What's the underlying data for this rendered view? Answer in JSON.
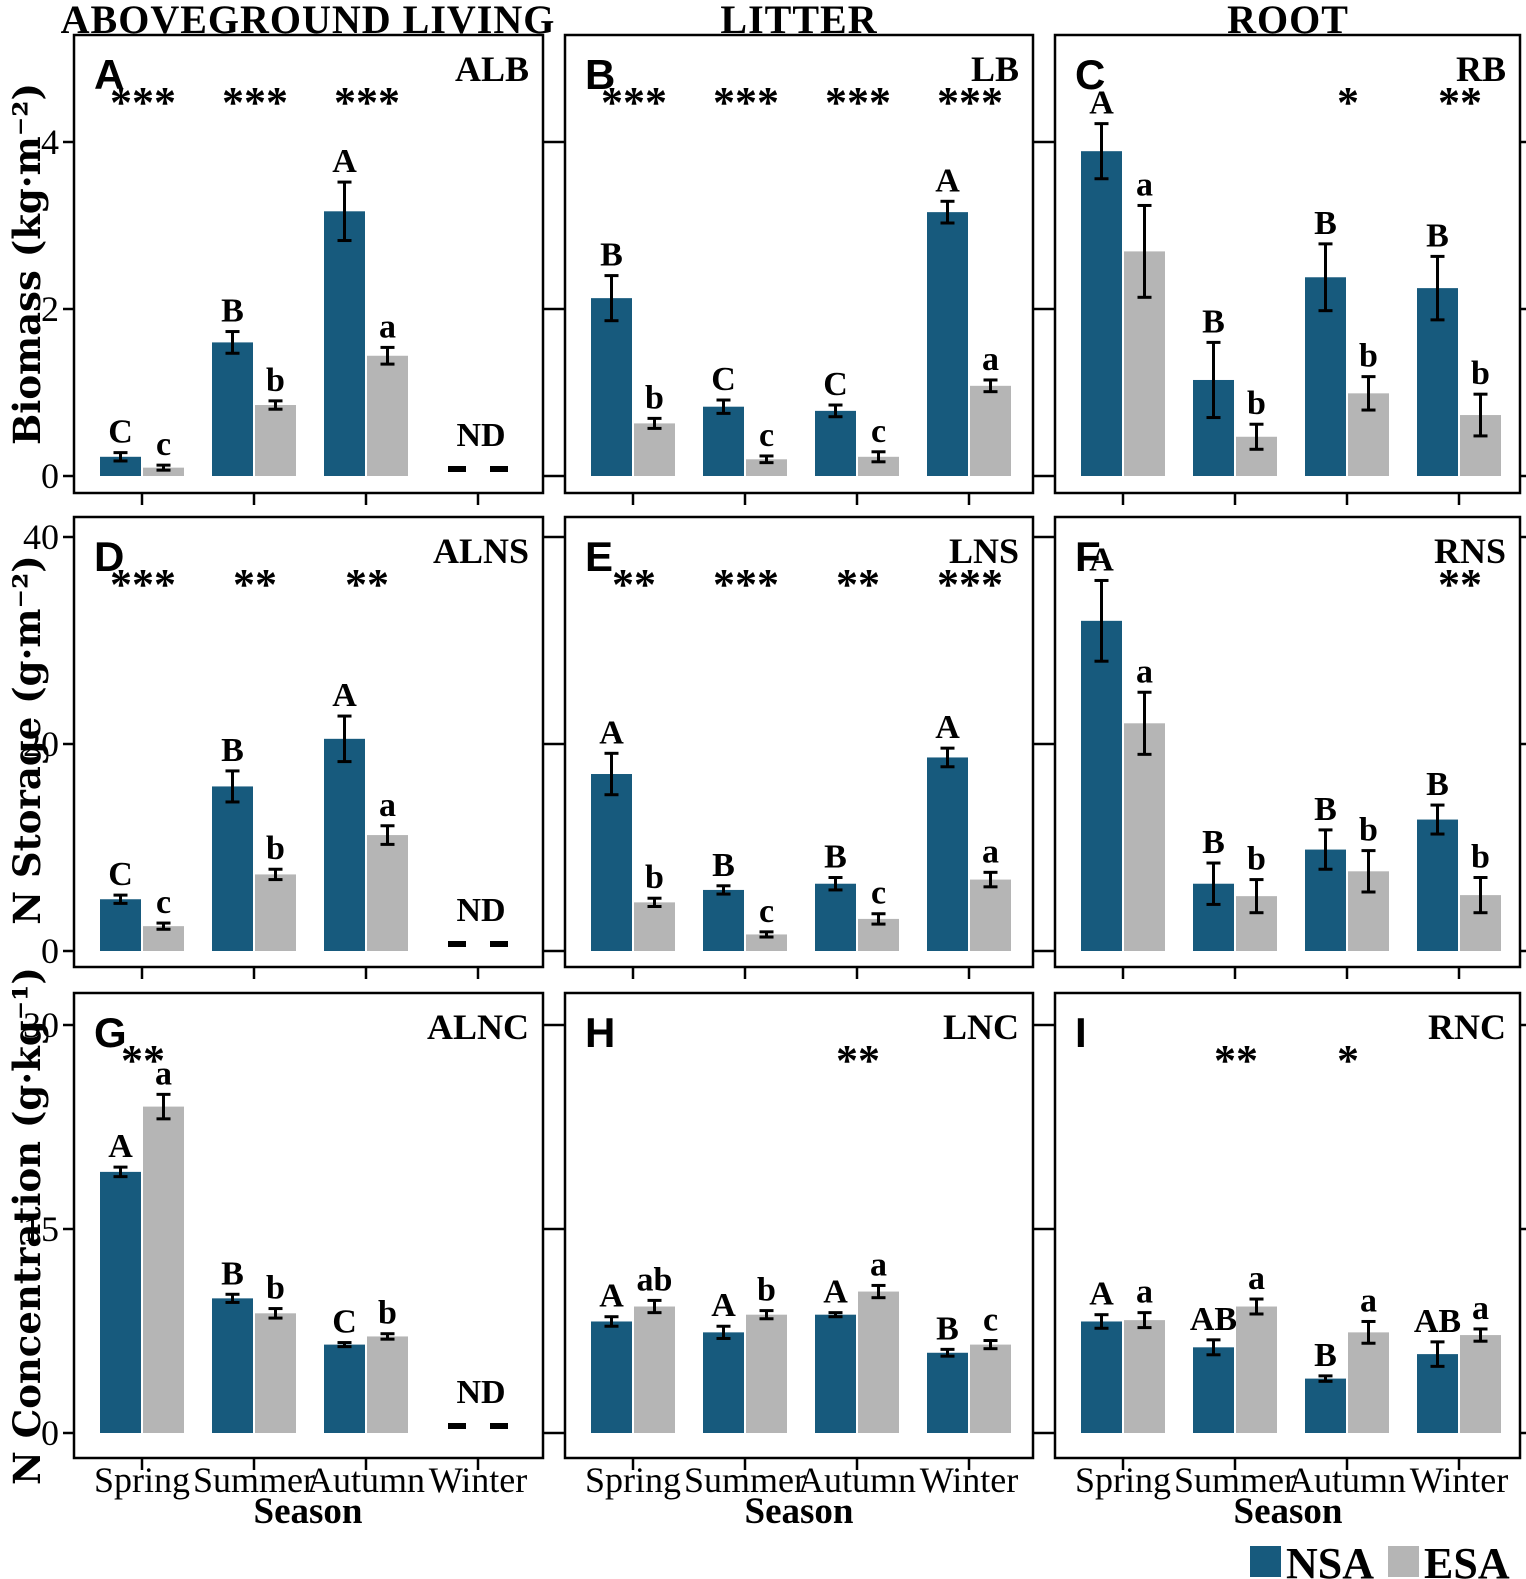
{
  "figure": {
    "columns": [
      "ABOVEGROUND LIVING",
      "LITTER",
      "ROOT"
    ],
    "row_ylabels": [
      "Biomass (kg·m⁻²)",
      "N Storage (g·m⁻²)",
      "N Concentration (g·kg⁻¹)"
    ],
    "xlabel": "Season",
    "x_categories": [
      "Spring",
      "Summer",
      "Autumn",
      "Winter"
    ],
    "nd_label": "ND",
    "colors": {
      "nsa": "#175a7d",
      "esa": "#b5b5b5",
      "axis": "#000000"
    },
    "legend": [
      {
        "label": "NSA",
        "color": "#175a7d"
      },
      {
        "label": "ESA",
        "color": "#b5b5b5"
      }
    ]
  },
  "chart_data": [
    {
      "type": "bar",
      "panel": "A",
      "tag": "ALB",
      "row": 0,
      "col": 0,
      "ylim": [
        0,
        5.3
      ],
      "yticks": [
        0,
        2,
        4
      ],
      "categories": [
        "Spring",
        "Summer",
        "Autumn",
        "Winter"
      ],
      "stars": [
        "***",
        "***",
        "***",
        ""
      ],
      "nd": [
        false,
        false,
        false,
        true
      ],
      "series": [
        {
          "name": "NSA",
          "values": [
            0.23,
            1.6,
            3.17,
            null
          ],
          "errors": [
            0.05,
            0.13,
            0.35,
            null
          ],
          "letters": [
            "C",
            "B",
            "A",
            ""
          ]
        },
        {
          "name": "ESA",
          "values": [
            0.1,
            0.85,
            1.44,
            null
          ],
          "errors": [
            0.03,
            0.05,
            0.1,
            null
          ],
          "letters": [
            "c",
            "b",
            "a",
            ""
          ]
        }
      ]
    },
    {
      "type": "bar",
      "panel": "B",
      "tag": "LB",
      "row": 0,
      "col": 1,
      "ylim": [
        0,
        5.3
      ],
      "yticks": [
        0,
        2,
        4
      ],
      "categories": [
        "Spring",
        "Summer",
        "Autumn",
        "Winter"
      ],
      "stars": [
        "***",
        "***",
        "***",
        "***"
      ],
      "nd": [
        false,
        false,
        false,
        false
      ],
      "series": [
        {
          "name": "NSA",
          "values": [
            2.13,
            0.83,
            0.78,
            3.16
          ],
          "errors": [
            0.27,
            0.08,
            0.07,
            0.13
          ],
          "letters": [
            "B",
            "C",
            "C",
            "A"
          ]
        },
        {
          "name": "ESA",
          "values": [
            0.63,
            0.2,
            0.23,
            1.08
          ],
          "errors": [
            0.06,
            0.04,
            0.06,
            0.07
          ],
          "letters": [
            "b",
            "c",
            "c",
            "a"
          ]
        }
      ]
    },
    {
      "type": "bar",
      "panel": "C",
      "tag": "RB",
      "row": 0,
      "col": 2,
      "ylim": [
        0,
        5.3
      ],
      "yticks": [
        0,
        2,
        4
      ],
      "categories": [
        "Spring",
        "Summer",
        "Autumn",
        "Winter"
      ],
      "stars": [
        "",
        "",
        "*",
        "**"
      ],
      "nd": [
        false,
        false,
        false,
        false
      ],
      "series": [
        {
          "name": "NSA",
          "values": [
            3.89,
            1.15,
            2.38,
            2.25
          ],
          "errors": [
            0.33,
            0.45,
            0.4,
            0.38
          ],
          "letters": [
            "A",
            "B",
            "B",
            "B"
          ]
        },
        {
          "name": "ESA",
          "values": [
            2.69,
            0.47,
            0.99,
            0.73
          ],
          "errors": [
            0.55,
            0.15,
            0.2,
            0.25
          ],
          "letters": [
            "a",
            "b",
            "b",
            "b"
          ]
        }
      ]
    },
    {
      "type": "bar",
      "panel": "D",
      "tag": "ALNS",
      "row": 1,
      "col": 0,
      "ylim": [
        0,
        42
      ],
      "yticks": [
        0,
        20,
        40
      ],
      "categories": [
        "Spring",
        "Summer",
        "Autumn",
        "Winter"
      ],
      "stars": [
        "***",
        "**",
        "**",
        ""
      ],
      "nd": [
        false,
        false,
        false,
        true
      ],
      "series": [
        {
          "name": "NSA",
          "values": [
            5.0,
            15.9,
            20.5,
            null
          ],
          "errors": [
            0.4,
            1.5,
            2.2,
            null
          ],
          "letters": [
            "C",
            "B",
            "A",
            ""
          ]
        },
        {
          "name": "ESA",
          "values": [
            2.4,
            7.4,
            11.2,
            null
          ],
          "errors": [
            0.3,
            0.5,
            0.9,
            null
          ],
          "letters": [
            "c",
            "b",
            "a",
            ""
          ]
        }
      ]
    },
    {
      "type": "bar",
      "panel": "E",
      "tag": "LNS",
      "row": 1,
      "col": 1,
      "ylim": [
        0,
        42
      ],
      "yticks": [
        0,
        20,
        40
      ],
      "categories": [
        "Spring",
        "Summer",
        "Autumn",
        "Winter"
      ],
      "stars": [
        "**",
        "***",
        "**",
        "***"
      ],
      "nd": [
        false,
        false,
        false,
        false
      ],
      "series": [
        {
          "name": "NSA",
          "values": [
            17.1,
            5.9,
            6.5,
            18.7
          ],
          "errors": [
            2.0,
            0.4,
            0.6,
            0.9
          ],
          "letters": [
            "A",
            "B",
            "B",
            "A"
          ]
        },
        {
          "name": "ESA",
          "values": [
            4.7,
            1.6,
            3.1,
            6.9
          ],
          "errors": [
            0.4,
            0.25,
            0.5,
            0.7
          ],
          "letters": [
            "b",
            "c",
            "c",
            "a"
          ]
        }
      ]
    },
    {
      "type": "bar",
      "panel": "F",
      "tag": "RNS",
      "row": 1,
      "col": 2,
      "ylim": [
        0,
        42
      ],
      "yticks": [
        0,
        20,
        40
      ],
      "categories": [
        "Spring",
        "Summer",
        "Autumn",
        "Winter"
      ],
      "stars": [
        "",
        "",
        "",
        "**"
      ],
      "nd": [
        false,
        false,
        false,
        false
      ],
      "series": [
        {
          "name": "NSA",
          "values": [
            31.9,
            6.5,
            9.8,
            12.7
          ],
          "errors": [
            3.9,
            2.0,
            1.9,
            1.4
          ],
          "letters": [
            "A",
            "B",
            "B",
            "B"
          ]
        },
        {
          "name": "ESA",
          "values": [
            22.0,
            5.3,
            7.7,
            5.4
          ],
          "errors": [
            3.0,
            1.6,
            2.0,
            1.7
          ],
          "letters": [
            "a",
            "b",
            "b",
            "b"
          ]
        }
      ]
    },
    {
      "type": "bar",
      "panel": "G",
      "tag": "ALNC",
      "row": 2,
      "col": 0,
      "ylim": [
        0,
        32.4
      ],
      "yticks": [
        0,
        15,
        30
      ],
      "categories": [
        "Spring",
        "Summer",
        "Autumn",
        "Winter"
      ],
      "stars": [
        "**",
        "",
        "",
        ""
      ],
      "nd": [
        false,
        false,
        false,
        true
      ],
      "series": [
        {
          "name": "NSA",
          "values": [
            19.2,
            9.9,
            6.5,
            null
          ],
          "errors": [
            0.35,
            0.3,
            0.15,
            null
          ],
          "letters": [
            "A",
            "B",
            "C",
            ""
          ]
        },
        {
          "name": "ESA",
          "values": [
            24.0,
            8.8,
            7.1,
            null
          ],
          "errors": [
            0.9,
            0.35,
            0.2,
            null
          ],
          "letters": [
            "a",
            "b",
            "b",
            ""
          ]
        }
      ]
    },
    {
      "type": "bar",
      "panel": "H",
      "tag": "LNC",
      "row": 2,
      "col": 1,
      "ylim": [
        0,
        32.4
      ],
      "yticks": [
        0,
        15,
        30
      ],
      "categories": [
        "Spring",
        "Summer",
        "Autumn",
        "Winter"
      ],
      "stars": [
        "",
        "",
        "**",
        ""
      ],
      "nd": [
        false,
        false,
        false,
        false
      ],
      "series": [
        {
          "name": "NSA",
          "values": [
            8.2,
            7.4,
            8.7,
            5.9
          ],
          "errors": [
            0.35,
            0.45,
            0.15,
            0.25
          ],
          "letters": [
            "A",
            "A",
            "A",
            "B"
          ]
        },
        {
          "name": "ESA",
          "values": [
            9.3,
            8.7,
            10.4,
            6.5
          ],
          "errors": [
            0.45,
            0.3,
            0.45,
            0.3
          ],
          "letters": [
            "ab",
            "b",
            "a",
            "c"
          ]
        }
      ]
    },
    {
      "type": "bar",
      "panel": "I",
      "tag": "RNC",
      "row": 2,
      "col": 2,
      "ylim": [
        0,
        32.4
      ],
      "yticks": [
        0,
        15,
        30
      ],
      "categories": [
        "Spring",
        "Summer",
        "Autumn",
        "Winter"
      ],
      "stars": [
        "",
        "**",
        "*",
        ""
      ],
      "nd": [
        false,
        false,
        false,
        false
      ],
      "series": [
        {
          "name": "NSA",
          "values": [
            8.2,
            6.3,
            4.0,
            5.8
          ],
          "errors": [
            0.5,
            0.55,
            0.2,
            0.9
          ],
          "letters": [
            "A",
            "AB",
            "B",
            "AB"
          ]
        },
        {
          "name": "ESA",
          "values": [
            8.3,
            9.3,
            7.4,
            7.2
          ],
          "errors": [
            0.55,
            0.55,
            0.8,
            0.45
          ],
          "letters": [
            "a",
            "a",
            "a",
            "a"
          ]
        }
      ]
    }
  ]
}
